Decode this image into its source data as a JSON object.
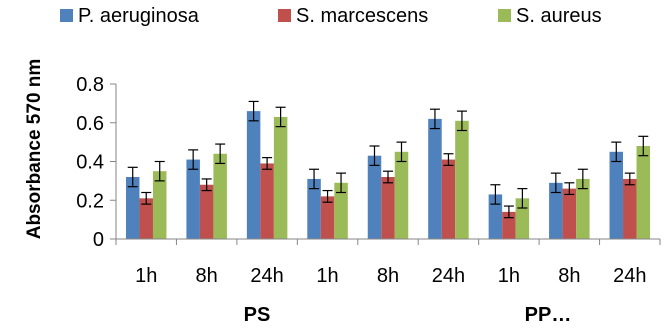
{
  "chart_data": {
    "type": "bar",
    "title": "",
    "xlabel": "",
    "ylabel": "Absorbance 570 nm",
    "ylim": [
      0,
      0.8
    ],
    "yticks": [
      "0",
      "0.2",
      "0.4",
      "0.6",
      "0.8"
    ],
    "ytick_values": [
      0,
      0.2,
      0.4,
      0.6,
      0.8
    ],
    "grid": false,
    "legend_position": "top",
    "categories": [
      "1h",
      "8h",
      "24h",
      "1h",
      "8h",
      "24h",
      "1h",
      "8h",
      "24h"
    ],
    "groups": [
      {
        "label": "PS",
        "span": [
          0,
          5
        ]
      },
      {
        "label": "PP…",
        "span": [
          6,
          8
        ]
      }
    ],
    "series": [
      {
        "name": "P. aeruginosa",
        "color": "#4F81BD",
        "values": [
          0.32,
          0.41,
          0.66,
          0.31,
          0.43,
          0.62,
          0.23,
          0.29,
          0.45
        ],
        "errors": [
          0.05,
          0.05,
          0.05,
          0.05,
          0.05,
          0.05,
          0.05,
          0.05,
          0.05
        ]
      },
      {
        "name": "S. marcescens",
        "color": "#C0504D",
        "values": [
          0.21,
          0.28,
          0.39,
          0.22,
          0.32,
          0.41,
          0.14,
          0.26,
          0.31
        ],
        "errors": [
          0.03,
          0.03,
          0.03,
          0.03,
          0.03,
          0.03,
          0.03,
          0.03,
          0.03
        ]
      },
      {
        "name": "S. aureus",
        "color": "#9BBB59",
        "values": [
          0.35,
          0.44,
          0.63,
          0.29,
          0.45,
          0.61,
          0.21,
          0.31,
          0.48
        ],
        "errors": [
          0.05,
          0.05,
          0.05,
          0.05,
          0.05,
          0.05,
          0.05,
          0.05,
          0.05
        ]
      }
    ]
  }
}
